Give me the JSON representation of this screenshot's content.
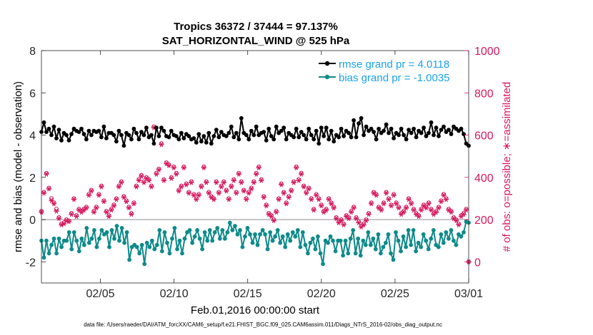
{
  "chart_data": {
    "type": "line",
    "title": "Tropics 36372 / 37444 = 97.137%",
    "subtitle": "SAT_HORIZONTAL_WIND @ 525 hPa",
    "xlabel": "Feb.01,2016 00:00:00 start",
    "ylabel_left": "rmse and bias (model - observation)",
    "ylabel_right": "# of obs: o=possible; ∗=assimilated",
    "x_range": [
      "2016-02-01",
      "2016-03-01"
    ],
    "x_ticks": [
      "02/05",
      "02/10",
      "02/15",
      "02/20",
      "02/25",
      "03/01"
    ],
    "x_tick_days": [
      4,
      9,
      14,
      19,
      24,
      29
    ],
    "ylim_left": [
      -3,
      8
    ],
    "yticks_left": [
      "-2",
      "0",
      "2",
      "4",
      "6",
      "8"
    ],
    "ylim_right": [
      -100,
      1000
    ],
    "yticks_right": [
      "0",
      "200",
      "400",
      "600",
      "800",
      "1000"
    ],
    "grid": false,
    "legend": "top-right",
    "footnote": "data file: /Users/raeder/DAI/ATM_forcXX/CAM6_setup/f.e21.FHIST_BGC.f09_025.CAM6assim.011/Diags_NTrS_2016-02/obs_diag_output.nc",
    "colors": {
      "rmse": "#000000",
      "bias": "#0e8a8a",
      "obs": "#d6195f",
      "zero": "#b3b3b3"
    },
    "series": [
      {
        "name": "rmse grand pr = 4.0118",
        "axis": "left",
        "values": [
          4.15,
          4.6,
          4.15,
          4.3,
          4.0,
          4.4,
          3.85,
          4.25,
          3.75,
          4.1,
          4.0,
          3.75,
          4.05,
          4.3,
          4.2,
          4.15,
          4.3,
          4.05,
          3.8,
          4.2,
          4.0,
          4.2,
          4.15,
          4.2,
          3.9,
          4.4,
          3.85,
          4.1,
          4.1,
          4.0,
          3.7,
          4.2,
          4.0,
          3.5,
          4.1,
          4.0,
          3.8,
          4.3,
          4.1,
          3.8,
          4.15,
          4.0,
          4.35,
          3.9,
          4.0,
          3.6,
          4.35,
          3.95,
          4.35,
          4.2,
          3.95,
          3.9,
          4.2,
          4.0,
          3.95,
          3.8,
          4.1,
          3.85,
          4.05,
          3.95,
          3.8,
          3.85,
          3.65,
          4.05,
          3.7,
          3.95,
          3.65,
          4.1,
          3.6,
          3.95,
          4.25,
          3.9,
          4.15,
          4.0,
          3.95,
          4.1,
          4.4,
          3.9,
          4.1,
          3.8,
          4.8,
          4.1,
          4.0,
          3.8,
          4.2,
          4.0,
          4.4,
          4.0,
          4.1,
          4.15,
          3.75,
          4.3,
          3.95,
          3.8,
          4.4,
          4.1,
          4.2,
          4.35,
          3.8,
          4.1,
          4.0,
          3.9,
          4.3,
          3.9,
          4.15,
          4.0,
          3.8,
          4.3,
          4.0,
          3.8,
          4.2,
          3.6,
          4.35,
          3.95,
          4.35,
          3.8,
          4.2,
          3.7,
          4.0,
          3.9,
          4.3,
          3.95,
          4.2,
          4.1,
          3.9,
          4.7,
          3.9,
          4.55,
          4.8,
          4.0,
          4.4,
          4.2,
          4.3,
          4.15,
          3.8,
          4.3,
          4.1,
          4.2,
          4.5,
          4.1,
          4.3,
          3.85,
          4.1,
          4.0,
          4.3,
          4.0,
          3.8,
          4.25,
          4.1,
          4.3,
          3.9,
          4.2,
          4.1,
          4.35,
          3.95,
          4.1,
          4.6,
          4.0,
          4.35,
          3.95,
          4.25,
          4.4,
          4.15,
          4.25,
          4.05,
          4.4,
          4.3,
          4.2,
          4.3,
          4.05,
          3.6,
          3.5
        ]
      },
      {
        "name": "bias grand pr = -1.0035",
        "axis": "left",
        "values": [
          -1.0,
          -1.8,
          -1.0,
          -1.6,
          -1.2,
          -0.9,
          -1.6,
          -0.9,
          -1.3,
          -1.0,
          -1.0,
          -0.6,
          -1.4,
          -0.6,
          -1.0,
          -1.5,
          -0.9,
          -1.2,
          -0.4,
          -1.1,
          -0.9,
          -0.5,
          -1.3,
          -0.9,
          -0.5,
          -0.7,
          -0.6,
          -1.3,
          -0.5,
          -0.9,
          -0.3,
          -1.0,
          -0.4,
          -1.1,
          -0.6,
          -1.9,
          -1.3,
          -1.2,
          -1.3,
          -1.6,
          -1.2,
          -2.1,
          -1.1,
          -1.3,
          -1.0,
          -1.4,
          -1.2,
          -0.5,
          -1.5,
          -0.6,
          -1.1,
          -1.6,
          -0.9,
          -0.4,
          -1.4,
          -1.0,
          -1.6,
          -0.9,
          -0.6,
          -0.5,
          -1.1,
          -0.8,
          -0.5,
          -0.9,
          -1.4,
          -0.6,
          -1.0,
          -0.5,
          -1.0,
          -0.6,
          -0.4,
          -0.9,
          -0.5,
          -0.9,
          -0.6,
          -0.15,
          -0.5,
          -0.3,
          -0.7,
          -0.5,
          -1.3,
          -0.8,
          -0.4,
          -0.7,
          -1.1,
          -0.7,
          -1.2,
          -0.7,
          -0.5,
          -0.7,
          -1.4,
          -0.6,
          -1.0,
          -0.8,
          -0.5,
          -1.1,
          -0.8,
          -1.3,
          -0.7,
          -1.0,
          -0.6,
          -0.8,
          -0.5,
          -1.3,
          -0.6,
          -1.2,
          -1.6,
          -1.1,
          -0.9,
          -1.4,
          -0.8,
          -1.6,
          -2.1,
          -1.0,
          -1.1,
          -0.8,
          -1.0,
          -1.5,
          -1.0,
          -1.0,
          -1.7,
          -1.0,
          -1.6,
          -0.9,
          -0.5,
          -1.6,
          -0.9,
          -1.7,
          -1.0,
          -1.2,
          -0.6,
          -1.2,
          -0.9,
          -1.4,
          -0.7,
          -1.6,
          -1.3,
          -1.1,
          -0.7,
          -1.6,
          -1.9,
          -0.6,
          -1.0,
          -1.5,
          -0.8,
          -1.3,
          -0.5,
          -1.2,
          -0.5,
          -1.5,
          -1.1,
          -1.3,
          -0.7,
          -1.0,
          -1.4,
          -0.9,
          -0.5,
          -1.2,
          -1.3,
          -0.7,
          -1.1,
          -0.6,
          -0.9,
          -0.5,
          -1.0,
          -1.2,
          -0.7,
          -0.8,
          -0.6,
          -0.1,
          -0.15
        ]
      },
      {
        "name": "obs possible",
        "axis": "right",
        "marker": "circle",
        "values": [
          240,
          330,
          420,
          350,
          300,
          280,
          250,
          210,
          180,
          185,
          200,
          195,
          230,
          300,
          220,
          250,
          240,
          250,
          260,
          320,
          340,
          240,
          260,
          320,
          360,
          290,
          240,
          220,
          250,
          270,
          300,
          360,
          380,
          310,
          290,
          260,
          230,
          280,
          360,
          390,
          410,
          380,
          400,
          390,
          360,
          640,
          420,
          440,
          560,
          390,
          470,
          460,
          400,
          450,
          420,
          340,
          360,
          450,
          370,
          330,
          380,
          320,
          300,
          320,
          360,
          450,
          380,
          330,
          310,
          300,
          380,
          330,
          360,
          380,
          340,
          300,
          360,
          390,
          330,
          420,
          380,
          340,
          300,
          330,
          350,
          380,
          420,
          450,
          390,
          310,
          270,
          230,
          220,
          200,
          240,
          300,
          370,
          330,
          280,
          310,
          340,
          380,
          450,
          390,
          420,
          360,
          330,
          350,
          300,
          250,
          320,
          300,
          270,
          240,
          250,
          300,
          280,
          260,
          210,
          190,
          200,
          180,
          220,
          210,
          240,
          260,
          210,
          190,
          170,
          180,
          200,
          230,
          280,
          330,
          320,
          260,
          250,
          280,
          330,
          300,
          270,
          320,
          280,
          260,
          230,
          240,
          260,
          300,
          280,
          250,
          230,
          220,
          250,
          270,
          260,
          280,
          250,
          230,
          240,
          260,
          290,
          320,
          300,
          250,
          240,
          210,
          200,
          180,
          220,
          230,
          250,
          0
        ]
      },
      {
        "name": "obs assimilated",
        "axis": "right",
        "marker": "star",
        "values": [
          235,
          325,
          415,
          345,
          290,
          275,
          240,
          205,
          175,
          180,
          195,
          190,
          225,
          295,
          215,
          245,
          235,
          245,
          255,
          315,
          335,
          235,
          255,
          315,
          355,
          285,
          235,
          215,
          245,
          265,
          295,
          355,
          375,
          305,
          285,
          255,
          225,
          275,
          355,
          385,
          405,
          375,
          395,
          385,
          355,
          635,
          415,
          435,
          555,
          385,
          465,
          455,
          395,
          445,
          415,
          335,
          355,
          445,
          365,
          325,
          375,
          315,
          295,
          315,
          355,
          445,
          375,
          325,
          305,
          295,
          375,
          325,
          355,
          375,
          335,
          295,
          355,
          385,
          325,
          415,
          375,
          335,
          295,
          325,
          345,
          375,
          415,
          445,
          385,
          305,
          265,
          225,
          215,
          195,
          235,
          295,
          365,
          325,
          275,
          305,
          335,
          375,
          445,
          385,
          415,
          355,
          325,
          345,
          295,
          245,
          315,
          295,
          265,
          235,
          245,
          295,
          275,
          255,
          205,
          185,
          195,
          175,
          215,
          205,
          235,
          255,
          205,
          185,
          165,
          175,
          195,
          225,
          275,
          325,
          315,
          255,
          245,
          275,
          325,
          295,
          265,
          315,
          275,
          255,
          225,
          235,
          255,
          295,
          275,
          245,
          225,
          215,
          245,
          265,
          255,
          275,
          245,
          225,
          235,
          255,
          285,
          315,
          295,
          245,
          235,
          205,
          195,
          175,
          215,
          225,
          245,
          0
        ]
      }
    ]
  }
}
